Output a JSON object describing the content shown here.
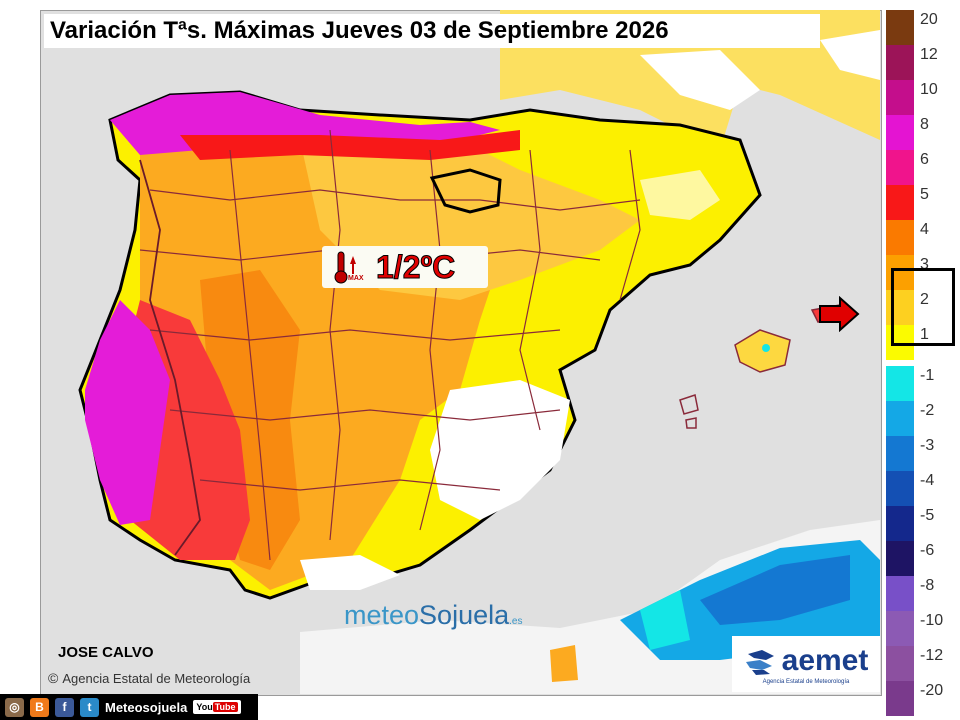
{
  "title": "Variación Tªs. Máximas Jueves 03 de Septiembre 2026",
  "badge": {
    "icon": "thermometer-up-icon",
    "max_label": "MAX",
    "value": "1/2ºC"
  },
  "author": "JOSE CALVO",
  "agency": {
    "copyright": "©",
    "name": "Agencia Estatal de Meteorología"
  },
  "watermark": {
    "part1": "meteo",
    "part2": "Sojuela",
    "suffix": ".es"
  },
  "aemet_logo": {
    "word": "aemet",
    "subtitle": "Agencia Estatal de Meteorología"
  },
  "social": {
    "icons": [
      "instagram-icon",
      "blogger-icon",
      "facebook-icon",
      "tuenti-icon"
    ],
    "name": "Meteosojuela",
    "youtube": "You",
    "youtube2": "Tube"
  },
  "legend": {
    "positive": [
      {
        "label": "20",
        "color": "#7a3a10"
      },
      {
        "label": "12",
        "color": "#9c1458"
      },
      {
        "label": "10",
        "color": "#c40e8c"
      },
      {
        "label": "8",
        "color": "#e414d2"
      },
      {
        "label": "6",
        "color": "#f0148c"
      },
      {
        "label": "5",
        "color": "#f81818"
      },
      {
        "label": "4",
        "color": "#fa7a00"
      },
      {
        "label": "3",
        "color": "#fca000"
      },
      {
        "label": "2",
        "color": "#fdd020"
      },
      {
        "label": "1",
        "color": "#fbfb00"
      }
    ],
    "negative": [
      {
        "label": "-1",
        "color": "#14e6e6"
      },
      {
        "label": "-2",
        "color": "#14a8e6"
      },
      {
        "label": "-3",
        "color": "#1478d2"
      },
      {
        "label": "-4",
        "color": "#1450b4"
      },
      {
        "label": "-5",
        "color": "#14288c"
      },
      {
        "label": "-6",
        "color": "#1e1464"
      },
      {
        "label": "-8",
        "color": "#7850c8"
      },
      {
        "label": "-10",
        "color": "#8c5ab4"
      },
      {
        "label": "-12",
        "color": "#8c50a0"
      },
      {
        "label": "-20",
        "color": "#7a3a8c"
      }
    ],
    "highlighted_range": [
      "1",
      "3"
    ]
  }
}
